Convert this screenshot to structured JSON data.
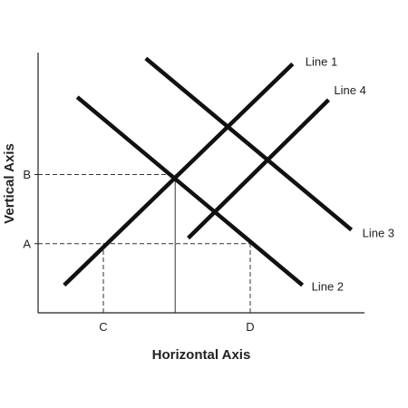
{
  "chart_data": {
    "type": "line",
    "xlabel": "Horizontal Axis",
    "ylabel": "Vertical Axis",
    "xlim": [
      0,
      10
    ],
    "ylim": [
      0,
      10
    ],
    "x_ticks": [
      {
        "label": "C",
        "value": 2.0
      },
      {
        "label": "D",
        "value": 6.5
      }
    ],
    "y_ticks": [
      {
        "label": "A",
        "value": 2.5
      },
      {
        "label": "B",
        "value": 5.0
      }
    ],
    "series": [
      {
        "name": "Line 1",
        "x": [
          0.8,
          7.8
        ],
        "y": [
          1.0,
          9.0
        ]
      },
      {
        "name": "Line 2",
        "x": [
          1.2,
          8.1
        ],
        "y": [
          7.8,
          1.0
        ]
      },
      {
        "name": "Line 3",
        "x": [
          3.3,
          9.6
        ],
        "y": [
          9.2,
          3.0
        ]
      },
      {
        "name": "Line 4",
        "x": [
          4.6,
          8.9
        ],
        "y": [
          2.7,
          7.7
        ]
      }
    ],
    "reference_lines": [
      {
        "from": [
          0,
          5.0
        ],
        "to": [
          4.2,
          5.0
        ],
        "style": "dashed"
      },
      {
        "from": [
          4.2,
          0
        ],
        "to": [
          4.2,
          5.0
        ],
        "style": "solid"
      },
      {
        "from": [
          0,
          2.5
        ],
        "to": [
          6.5,
          2.5
        ],
        "style": "dashed"
      },
      {
        "from": [
          2.0,
          0
        ],
        "to": [
          2.0,
          2.5
        ],
        "style": "dashed"
      },
      {
        "from": [
          6.5,
          0
        ],
        "to": [
          6.5,
          2.5
        ],
        "style": "dashed"
      }
    ],
    "grid": false,
    "legend": "none"
  }
}
